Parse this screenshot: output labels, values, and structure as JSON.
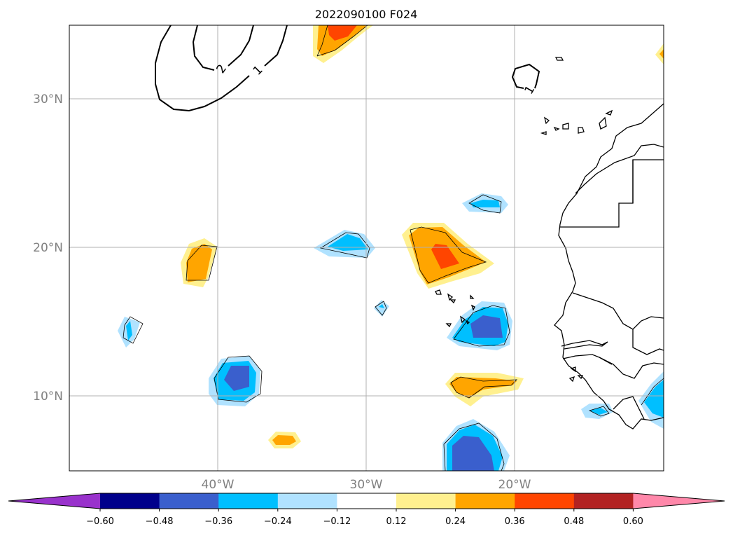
{
  "title": "2022090100 F024",
  "map": {
    "lat_ticks": [
      "30°N",
      "20°N",
      "10°N"
    ],
    "lon_ticks": [
      "40°W",
      "30°W",
      "20°W"
    ],
    "contour_labels": [
      "2",
      "1",
      "1"
    ],
    "colors": {
      "frame": "#000000",
      "grid": "#b0b0b0",
      "coast": "#000000",
      "tick_text": "#808080"
    }
  },
  "colorbar": {
    "labels": [
      "−0.60",
      "−0.48",
      "−0.36",
      "−0.24",
      "−0.12",
      "0.12",
      "0.24",
      "0.36",
      "0.48",
      "0.60"
    ],
    "under_color": "#9932cc",
    "over_color": "#ff88aa",
    "colors": [
      "#00008b",
      "#3a5fcd",
      "#00bfff",
      "#b0e2ff",
      "#ffffff",
      "#fff08f",
      "#ffa500",
      "#ff4500",
      "#b22222"
    ]
  },
  "chart_data": {
    "type": "heatmap",
    "title": "2022090100 F024",
    "levels": [
      -0.6,
      -0.48,
      -0.36,
      -0.24,
      -0.12,
      0.12,
      0.24,
      0.36,
      0.48,
      0.6
    ],
    "extend": "both",
    "lon_range": [
      -50,
      -10
    ],
    "lat_range": [
      5,
      35
    ],
    "lon_ticks": [
      -40,
      -30,
      -20
    ],
    "lat_ticks": [
      10,
      20,
      30
    ],
    "grid": true,
    "colorbar": "bottom-horizontal",
    "contour_lines": [
      2,
      1
    ]
  }
}
